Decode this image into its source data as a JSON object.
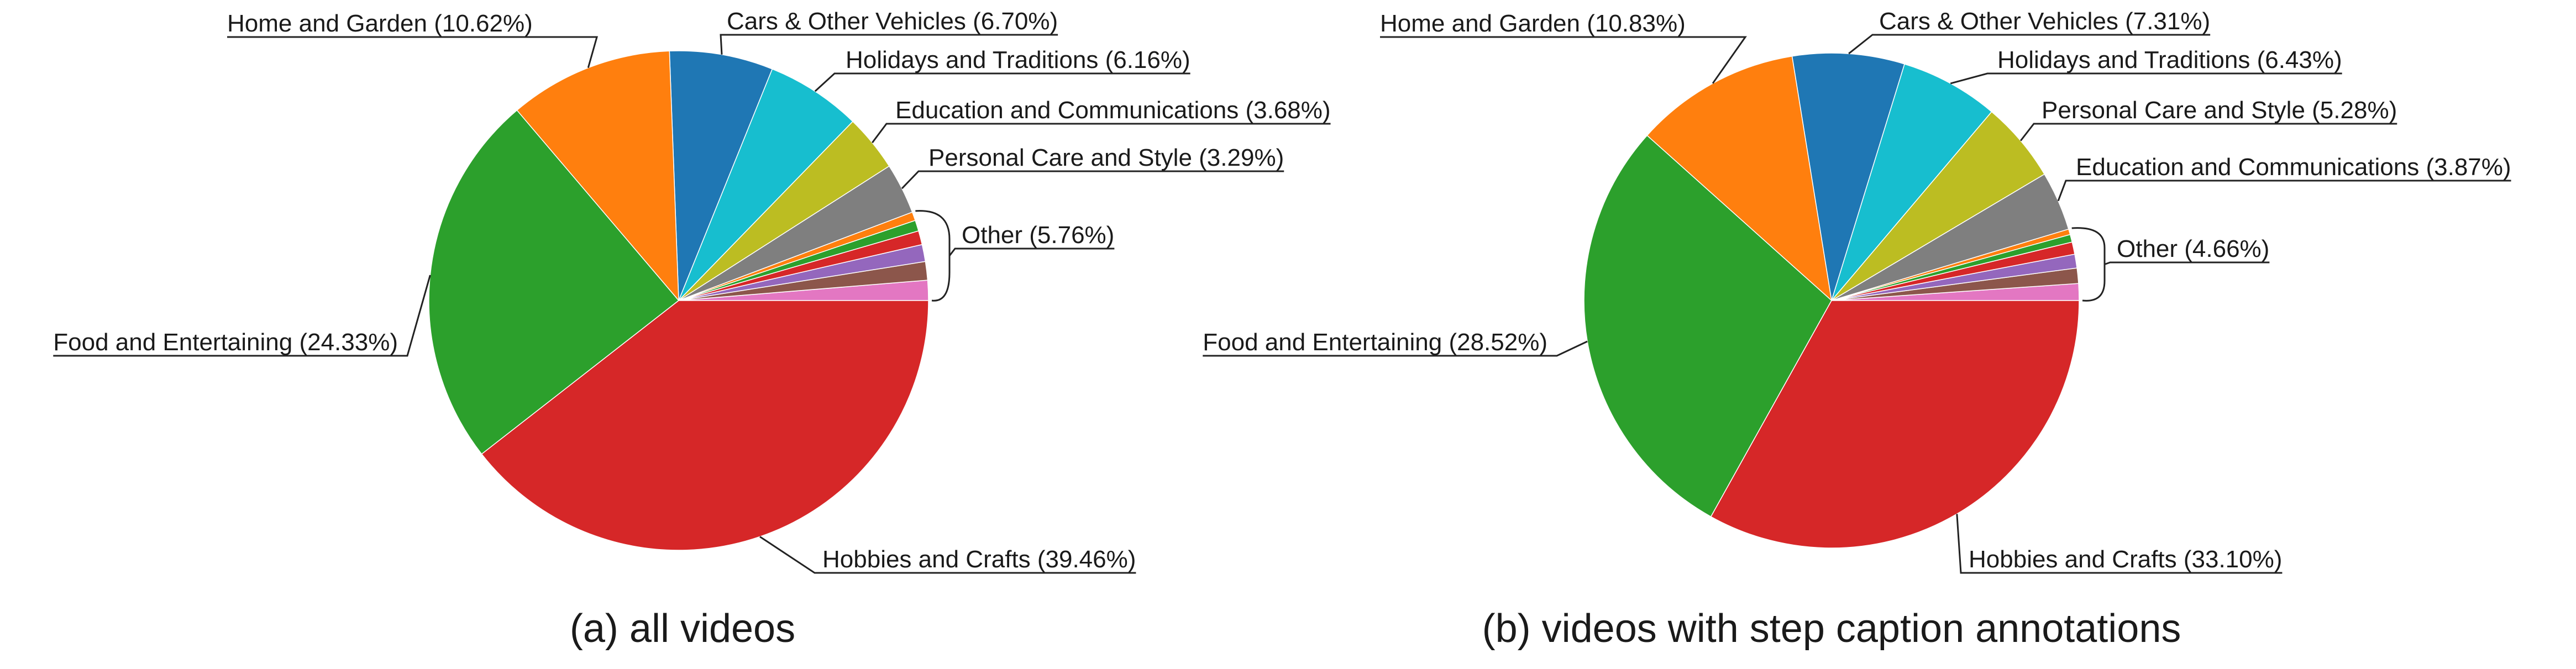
{
  "colors": {
    "hobbies": "#d62728",
    "food": "#2ca02c",
    "home": "#ff7f0e",
    "cars": "#1f77b4",
    "holidays": "#17becf",
    "education": "#bcbd22",
    "personal": "#7f7f7f",
    "other_pink": "#e377c2",
    "other_brown": "#8c564b",
    "other_purple": "#9467bd",
    "other_red": "#d62728",
    "other_green": "#2ca02c",
    "other_orange": "#ff7f0e"
  },
  "chart_data": [
    {
      "type": "pie",
      "title": "(a) all videos",
      "start_angle_deg": 0,
      "direction": "counterclockwise",
      "slices": [
        {
          "key": "hobbies",
          "label": "Hobbies and Crafts (39.46%)",
          "value": 39.46,
          "color": "#d62728"
        },
        {
          "key": "food",
          "label": "Food and Entertaining (24.33%)",
          "value": 24.33,
          "color": "#2ca02c"
        },
        {
          "key": "home",
          "label": "Home and Garden (10.62%)",
          "value": 10.62,
          "color": "#ff7f0e"
        },
        {
          "key": "cars",
          "label": "Cars & Other Vehicles (6.70%)",
          "value": 6.7,
          "color": "#1f77b4"
        },
        {
          "key": "holidays",
          "label": "Holidays and Traditions (6.16%)",
          "value": 6.16,
          "color": "#17becf"
        },
        {
          "key": "education",
          "label": "Education and Communications (3.68%)",
          "value": 3.68,
          "color": "#bcbd22"
        },
        {
          "key": "personal",
          "label": "Personal Care and Style (3.29%)",
          "value": 3.29,
          "color": "#7f7f7f"
        }
      ],
      "other": {
        "label": "Other (5.76%)",
        "value": 5.76,
        "slices": [
          {
            "value": 1.3,
            "color": "#e377c2"
          },
          {
            "value": 1.2,
            "color": "#8c564b"
          },
          {
            "value": 1.1,
            "color": "#9467bd"
          },
          {
            "value": 0.9,
            "color": "#d62728"
          },
          {
            "value": 0.7,
            "color": "#2ca02c"
          },
          {
            "value": 0.56,
            "color": "#ff7f0e"
          }
        ]
      }
    },
    {
      "type": "pie",
      "title": "(b) videos with step caption annotations",
      "start_angle_deg": 0,
      "direction": "counterclockwise",
      "slices": [
        {
          "key": "hobbies",
          "label": "Hobbies and Crafts (33.10%)",
          "value": 33.1,
          "color": "#d62728"
        },
        {
          "key": "food",
          "label": "Food and Entertaining (28.52%)",
          "value": 28.52,
          "color": "#2ca02c"
        },
        {
          "key": "home",
          "label": "Home and Garden (10.83%)",
          "value": 10.83,
          "color": "#ff7f0e"
        },
        {
          "key": "cars",
          "label": "Cars & Other Vehicles (7.31%)",
          "value": 7.31,
          "color": "#1f77b4"
        },
        {
          "key": "holidays",
          "label": "Holidays and Traditions (6.43%)",
          "value": 6.43,
          "color": "#17becf"
        },
        {
          "key": "personal",
          "label": "Personal Care and Style (5.28%)",
          "value": 5.28,
          "color": "#bcbd22"
        },
        {
          "key": "education",
          "label": "Education and Communications (3.87%)",
          "value": 3.87,
          "color": "#7f7f7f"
        }
      ],
      "other": {
        "label": "Other (4.66%)",
        "value": 4.66,
        "slices": [
          {
            "value": 1.1,
            "color": "#e377c2"
          },
          {
            "value": 1.0,
            "color": "#8c564b"
          },
          {
            "value": 0.9,
            "color": "#9467bd"
          },
          {
            "value": 0.8,
            "color": "#d62728"
          },
          {
            "value": 0.5,
            "color": "#2ca02c"
          },
          {
            "value": 0.36,
            "color": "#ff7f0e"
          }
        ]
      }
    }
  ]
}
